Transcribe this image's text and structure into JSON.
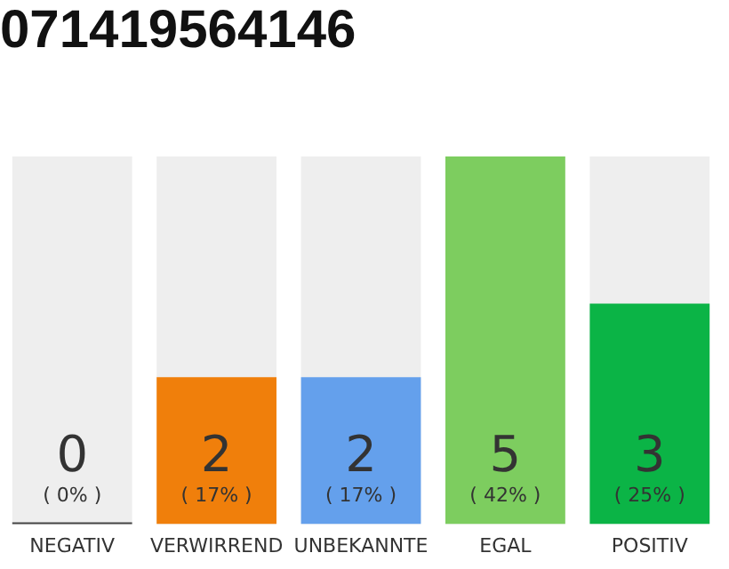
{
  "chart_data": {
    "type": "bar",
    "title": "071419564146",
    "categories": [
      "NEGATIV",
      "VERWIRREND",
      "UNBEKANNTE",
      "EGAL",
      "POSITIV"
    ],
    "values": [
      0,
      2,
      2,
      5,
      3
    ],
    "colors": [
      "#444444",
      "#f07f0b",
      "#64a0ec",
      "#7dcd5f",
      "#0bb446"
    ],
    "ylim": [
      0,
      5
    ],
    "grid": false,
    "legend": false,
    "data_labels": true,
    "tick_labels": "x",
    "annotations": [
      "( 0% )",
      "( 17% )",
      "( 17% )",
      "( 42% )",
      "( 25% )"
    ]
  }
}
